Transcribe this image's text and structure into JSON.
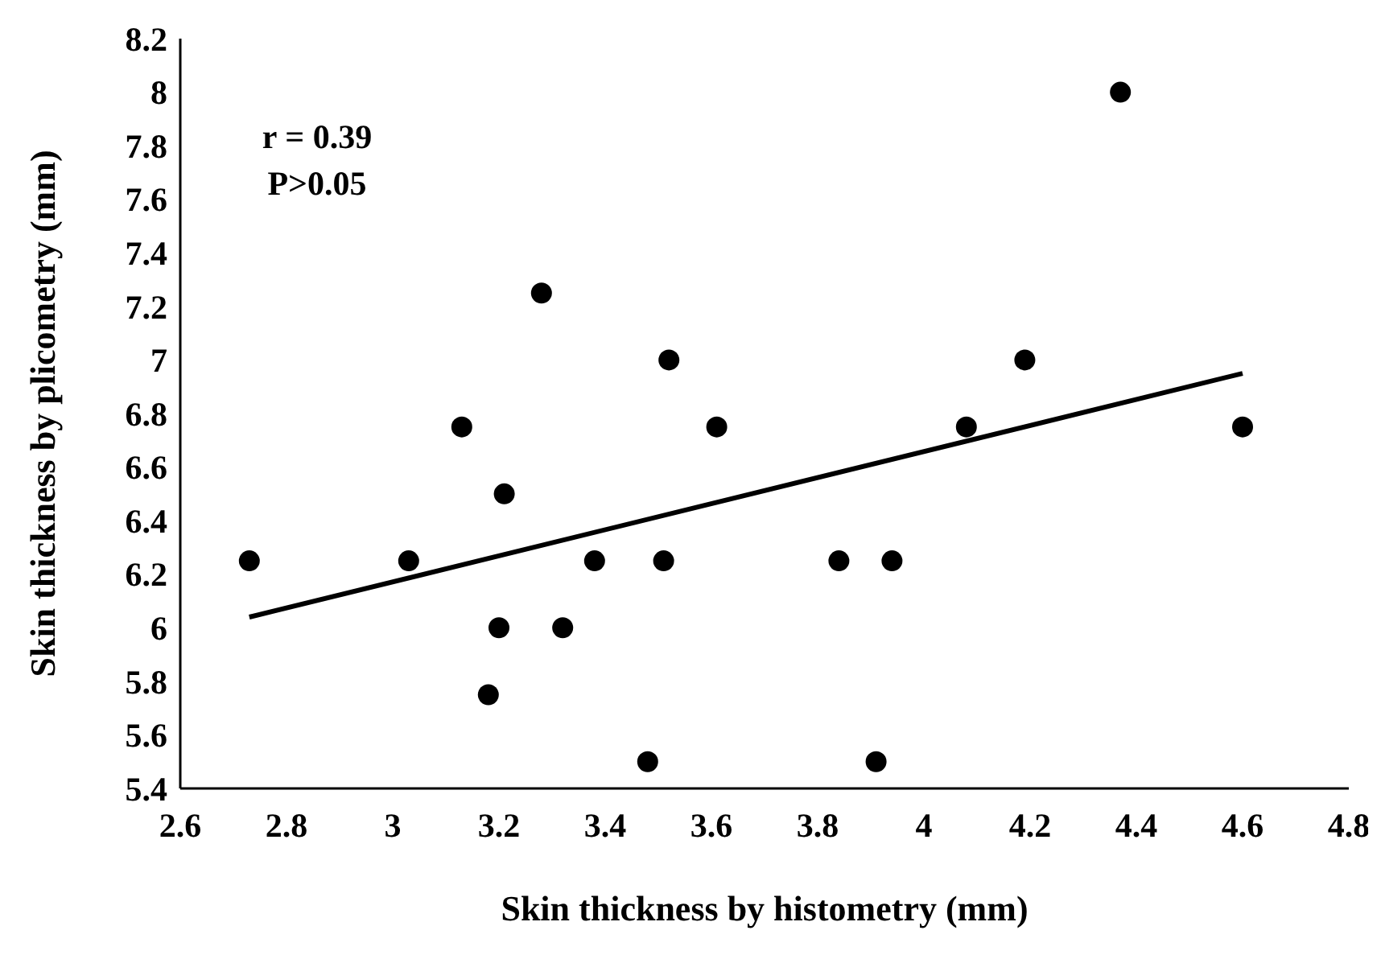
{
  "chart_data": {
    "type": "scatter",
    "xlabel": "Skin thickness by histometry (mm)",
    "ylabel": "Skin thickness by plicometry (mm)",
    "annotations": [
      "r = 0.39",
      "P>0.05"
    ],
    "xlim": [
      2.6,
      4.8
    ],
    "xticks": [
      2.6,
      2.8,
      3,
      3.2,
      3.4,
      3.6,
      3.8,
      4,
      4.2,
      4.4,
      4.6,
      4.8
    ],
    "ylim": [
      5.4,
      8.2
    ],
    "yticks": [
      5.4,
      5.6,
      5.8,
      6,
      6.2,
      6.4,
      6.6,
      6.8,
      7,
      7.2,
      7.4,
      7.6,
      7.8,
      8,
      8.2
    ],
    "grid": false,
    "marker": "circle",
    "series": [
      {
        "color": "#000000",
        "x": [
          2.73,
          3.03,
          3.13,
          3.21,
          3.2,
          3.18,
          3.28,
          3.32,
          3.38,
          3.48,
          3.51,
          3.52,
          3.61,
          3.84,
          3.94,
          3.91,
          4.08,
          4.19,
          4.37,
          4.6
        ],
        "values": [
          6.25,
          6.25,
          6.75,
          6.5,
          6.0,
          5.75,
          7.25,
          6.0,
          6.25,
          5.5,
          6.25,
          7.0,
          6.75,
          6.25,
          6.25,
          5.5,
          6.75,
          7.0,
          8.0,
          6.75
        ]
      },
      {
        "type": "line",
        "color": "#000000",
        "marker": "none",
        "line_style": "solid",
        "x": [
          2.73,
          4.6
        ],
        "values": [
          6.04,
          6.95
        ]
      }
    ]
  }
}
